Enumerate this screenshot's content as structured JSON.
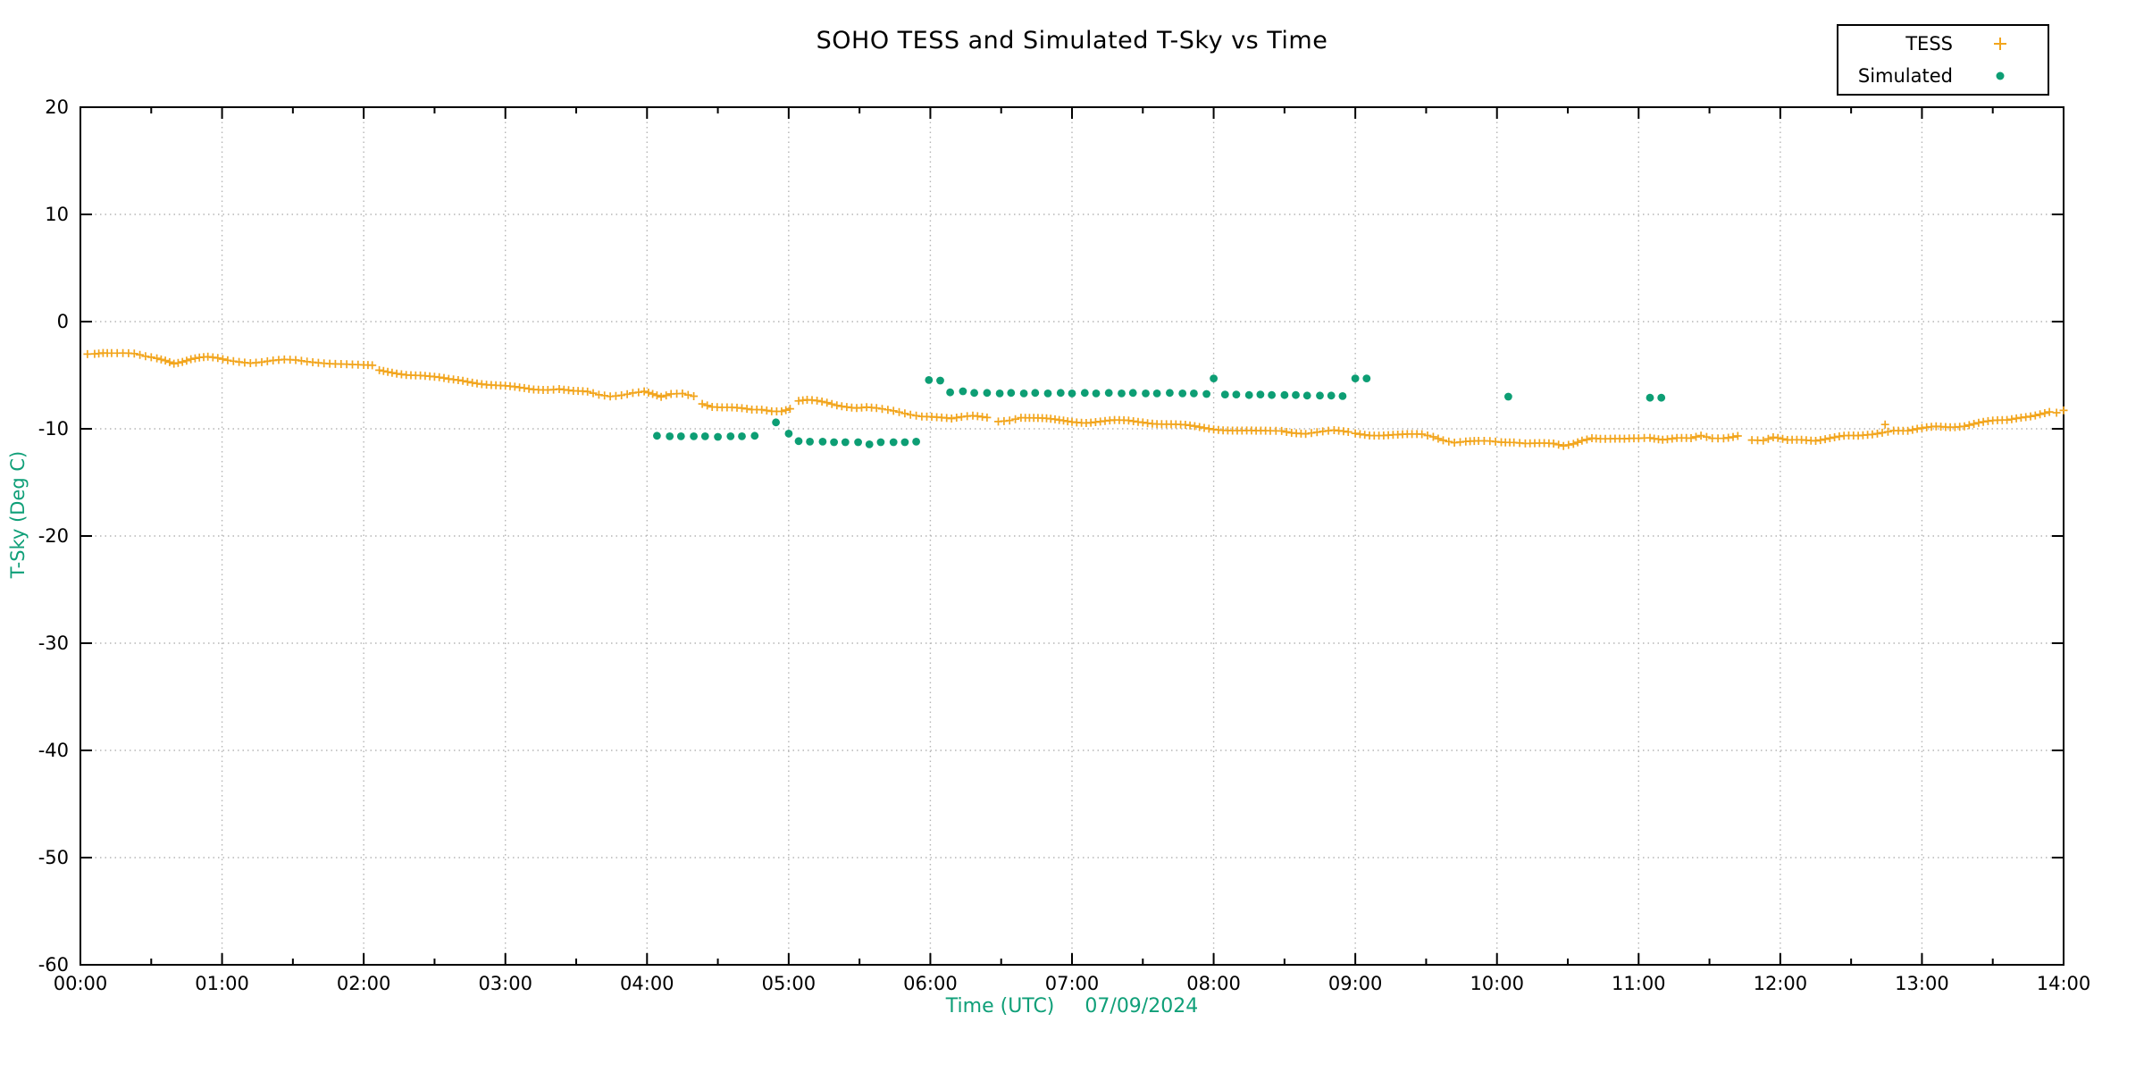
{
  "chart_data": {
    "type": "scatter",
    "title": "SOHO TESS and Simulated T-Sky vs Time",
    "xlabel": "Time (UTC)",
    "xlabel_date": "07/09/2024",
    "ylabel": "T-Sky (Deg C)",
    "xlim_hours": [
      0,
      14
    ],
    "ylim": [
      -60,
      20
    ],
    "x_tick_labels": [
      "00:00",
      "01:00",
      "02:00",
      "03:00",
      "04:00",
      "05:00",
      "06:00",
      "07:00",
      "08:00",
      "09:00",
      "10:00",
      "11:00",
      "12:00",
      "13:00",
      "14:00"
    ],
    "y_tick_values": [
      20,
      10,
      0,
      -10,
      -20,
      -30,
      -40,
      -50,
      -60
    ],
    "grid": "dotted, major ticks only",
    "legend_position": "top-right",
    "colors": {
      "tess": "#f2a51d",
      "simulated": "#0d9e74",
      "axis_labels": "#0f9f78",
      "tick_text": "#000000",
      "grid": "#b5b5b5",
      "border": "#000000"
    },
    "series": [
      {
        "name": "TESS",
        "marker": "plus",
        "color": "#f2a51d",
        "points": [
          [
            0.05,
            -3.0
          ],
          [
            0.1,
            -2.95
          ],
          [
            0.16,
            -2.85
          ],
          [
            0.22,
            -2.9
          ],
          [
            0.3,
            -2.95
          ],
          [
            0.38,
            -3.05
          ],
          [
            0.46,
            -3.3
          ],
          [
            0.54,
            -3.45
          ],
          [
            0.6,
            -3.6
          ],
          [
            0.66,
            -3.85
          ],
          [
            0.72,
            -3.7
          ],
          [
            0.78,
            -3.5
          ],
          [
            0.84,
            -3.4
          ],
          [
            0.9,
            -3.35
          ],
          [
            0.97,
            -3.45
          ],
          [
            1.04,
            -3.6
          ],
          [
            1.12,
            -3.7
          ],
          [
            1.2,
            -3.8
          ],
          [
            1.28,
            -3.75
          ],
          [
            1.36,
            -3.65
          ],
          [
            1.44,
            -3.6
          ],
          [
            1.52,
            -3.65
          ],
          [
            1.6,
            -3.75
          ],
          [
            1.68,
            -3.8
          ],
          [
            1.76,
            -3.85
          ],
          [
            1.84,
            -3.9
          ],
          [
            1.92,
            -4.0
          ],
          [
            2.0,
            -4.1
          ],
          [
            2.06,
            -4.15
          ],
          [
            2.11,
            -4.6
          ],
          [
            2.2,
            -4.75
          ],
          [
            2.3,
            -4.9
          ],
          [
            2.4,
            -5.0
          ],
          [
            2.5,
            -5.2
          ],
          [
            2.6,
            -5.4
          ],
          [
            2.7,
            -5.5
          ],
          [
            2.8,
            -5.7
          ],
          [
            2.9,
            -5.9
          ],
          [
            3.0,
            -6.05
          ],
          [
            3.1,
            -6.2
          ],
          [
            3.2,
            -6.3
          ],
          [
            3.3,
            -6.3
          ],
          [
            3.38,
            -6.25
          ],
          [
            3.48,
            -6.5
          ],
          [
            3.58,
            -6.6
          ],
          [
            3.66,
            -6.85
          ],
          [
            3.74,
            -6.95
          ],
          [
            3.82,
            -6.8
          ],
          [
            3.9,
            -6.6
          ],
          [
            3.98,
            -6.5
          ],
          [
            4.04,
            -6.8
          ],
          [
            4.1,
            -7.1
          ],
          [
            4.17,
            -6.8
          ],
          [
            4.25,
            -6.7
          ],
          [
            4.33,
            -6.9
          ],
          [
            4.39,
            -7.6
          ],
          [
            4.46,
            -7.9
          ],
          [
            4.53,
            -8.0
          ],
          [
            4.6,
            -8.05
          ],
          [
            4.67,
            -8.15
          ],
          [
            4.74,
            -8.25
          ],
          [
            4.81,
            -8.2
          ],
          [
            4.88,
            -8.3
          ],
          [
            4.95,
            -8.3
          ],
          [
            5.01,
            -8.1
          ],
          [
            5.07,
            -7.4
          ],
          [
            5.13,
            -7.35
          ],
          [
            5.2,
            -7.45
          ],
          [
            5.27,
            -7.6
          ],
          [
            5.34,
            -7.8
          ],
          [
            5.41,
            -7.9
          ],
          [
            5.48,
            -8.0
          ],
          [
            5.55,
            -7.95
          ],
          [
            5.62,
            -8.1
          ],
          [
            5.7,
            -8.3
          ],
          [
            5.78,
            -8.5
          ],
          [
            5.86,
            -8.7
          ],
          [
            5.94,
            -8.8
          ],
          [
            6.01,
            -8.8
          ],
          [
            6.08,
            -8.9
          ],
          [
            6.15,
            -9.05
          ],
          [
            6.22,
            -8.95
          ],
          [
            6.3,
            -8.85
          ],
          [
            6.4,
            -8.95
          ],
          [
            6.48,
            -9.3
          ],
          [
            6.56,
            -9.15
          ],
          [
            6.64,
            -8.9
          ],
          [
            6.73,
            -9.0
          ],
          [
            6.82,
            -9.1
          ],
          [
            6.91,
            -9.2
          ],
          [
            7.0,
            -9.3
          ],
          [
            7.1,
            -9.4
          ],
          [
            7.2,
            -9.35
          ],
          [
            7.3,
            -9.25
          ],
          [
            7.4,
            -9.25
          ],
          [
            7.5,
            -9.35
          ],
          [
            7.6,
            -9.5
          ],
          [
            7.7,
            -9.6
          ],
          [
            7.8,
            -9.7
          ],
          [
            7.9,
            -9.85
          ],
          [
            8.0,
            -10.0
          ],
          [
            8.1,
            -10.1
          ],
          [
            8.2,
            -10.2
          ],
          [
            8.3,
            -10.25
          ],
          [
            8.4,
            -10.2
          ],
          [
            8.48,
            -10.15
          ],
          [
            8.55,
            -10.3
          ],
          [
            8.65,
            -10.45
          ],
          [
            8.77,
            -10.3
          ],
          [
            8.85,
            -10.2
          ],
          [
            8.95,
            -10.3
          ],
          [
            9.0,
            -10.4
          ],
          [
            9.1,
            -10.55
          ],
          [
            9.2,
            -10.6
          ],
          [
            9.3,
            -10.6
          ],
          [
            9.4,
            -10.55
          ],
          [
            9.47,
            -10.5
          ],
          [
            9.55,
            -10.7
          ],
          [
            9.62,
            -11.0
          ],
          [
            9.7,
            -11.25
          ],
          [
            9.78,
            -11.2
          ],
          [
            9.87,
            -11.2
          ],
          [
            9.95,
            -11.2
          ],
          [
            10.03,
            -11.25
          ],
          [
            10.12,
            -11.2
          ],
          [
            10.2,
            -11.3
          ],
          [
            10.3,
            -11.35
          ],
          [
            10.4,
            -11.45
          ],
          [
            10.47,
            -11.65
          ],
          [
            10.54,
            -11.4
          ],
          [
            10.6,
            -11.05
          ],
          [
            10.67,
            -10.8
          ],
          [
            10.73,
            -10.9
          ],
          [
            10.8,
            -10.95
          ],
          [
            10.9,
            -11.0
          ],
          [
            11.0,
            -10.9
          ],
          [
            11.08,
            -10.8
          ],
          [
            11.17,
            -10.95
          ],
          [
            11.27,
            -10.85
          ],
          [
            11.37,
            -10.95
          ],
          [
            11.44,
            -10.7
          ],
          [
            11.52,
            -10.9
          ],
          [
            11.6,
            -10.85
          ],
          [
            11.7,
            -10.6
          ],
          [
            11.8,
            -11.0
          ],
          [
            11.88,
            -11.1
          ],
          [
            11.95,
            -10.85
          ],
          [
            12.05,
            -11.1
          ],
          [
            12.15,
            -11.0
          ],
          [
            12.25,
            -11.05
          ],
          [
            12.35,
            -10.85
          ],
          [
            12.45,
            -10.7
          ],
          [
            12.55,
            -10.7
          ],
          [
            12.65,
            -10.5
          ],
          [
            12.72,
            -10.3
          ],
          [
            12.8,
            -10.1
          ],
          [
            12.9,
            -10.2
          ],
          [
            13.0,
            -10.0
          ],
          [
            13.1,
            -9.8
          ],
          [
            13.2,
            -9.8
          ],
          [
            13.3,
            -9.7
          ],
          [
            13.4,
            -9.45
          ],
          [
            13.5,
            -9.3
          ],
          [
            13.6,
            -9.2
          ],
          [
            13.7,
            -8.9
          ],
          [
            13.8,
            -8.7
          ],
          [
            13.9,
            -8.45
          ],
          [
            13.95,
            -8.55
          ],
          [
            14.0,
            -8.35
          ]
        ],
        "outliers": [
          [
            12.74,
            -9.6
          ]
        ]
      },
      {
        "name": "Simulated",
        "marker": "dot",
        "color": "#0d9e74",
        "points": [
          [
            4.07,
            -10.65
          ],
          [
            4.16,
            -10.7
          ],
          [
            4.24,
            -10.7
          ],
          [
            4.33,
            -10.7
          ],
          [
            4.41,
            -10.7
          ],
          [
            4.5,
            -10.75
          ],
          [
            4.59,
            -10.7
          ],
          [
            4.67,
            -10.7
          ],
          [
            4.76,
            -10.65
          ],
          [
            4.91,
            -9.4
          ],
          [
            5.0,
            -10.45
          ],
          [
            5.07,
            -11.15
          ],
          [
            5.15,
            -11.2
          ],
          [
            5.24,
            -11.2
          ],
          [
            5.32,
            -11.25
          ],
          [
            5.4,
            -11.25
          ],
          [
            5.49,
            -11.25
          ],
          [
            5.57,
            -11.45
          ],
          [
            5.65,
            -11.25
          ],
          [
            5.74,
            -11.25
          ],
          [
            5.82,
            -11.25
          ],
          [
            5.9,
            -11.2
          ],
          [
            5.99,
            -5.45
          ],
          [
            6.07,
            -5.5
          ],
          [
            6.14,
            -6.6
          ],
          [
            6.23,
            -6.5
          ],
          [
            6.31,
            -6.65
          ],
          [
            6.4,
            -6.65
          ],
          [
            6.49,
            -6.7
          ],
          [
            6.57,
            -6.65
          ],
          [
            6.66,
            -6.7
          ],
          [
            6.74,
            -6.65
          ],
          [
            6.83,
            -6.7
          ],
          [
            6.92,
            -6.65
          ],
          [
            7.0,
            -6.7
          ],
          [
            7.09,
            -6.65
          ],
          [
            7.17,
            -6.7
          ],
          [
            7.26,
            -6.65
          ],
          [
            7.35,
            -6.7
          ],
          [
            7.43,
            -6.65
          ],
          [
            7.52,
            -6.7
          ],
          [
            7.6,
            -6.7
          ],
          [
            7.69,
            -6.65
          ],
          [
            7.78,
            -6.7
          ],
          [
            7.86,
            -6.7
          ],
          [
            7.95,
            -6.75
          ],
          [
            8.0,
            -5.3
          ],
          [
            8.08,
            -6.8
          ],
          [
            8.16,
            -6.8
          ],
          [
            8.25,
            -6.85
          ],
          [
            8.33,
            -6.8
          ],
          [
            8.41,
            -6.85
          ],
          [
            8.5,
            -6.85
          ],
          [
            8.58,
            -6.85
          ],
          [
            8.66,
            -6.9
          ],
          [
            8.75,
            -6.9
          ],
          [
            8.83,
            -6.9
          ],
          [
            8.91,
            -6.95
          ],
          [
            9.0,
            -5.3
          ],
          [
            9.08,
            -5.3
          ],
          [
            10.08,
            -7.0
          ],
          [
            11.08,
            -7.1
          ],
          [
            11.16,
            -7.1
          ]
        ]
      }
    ]
  }
}
